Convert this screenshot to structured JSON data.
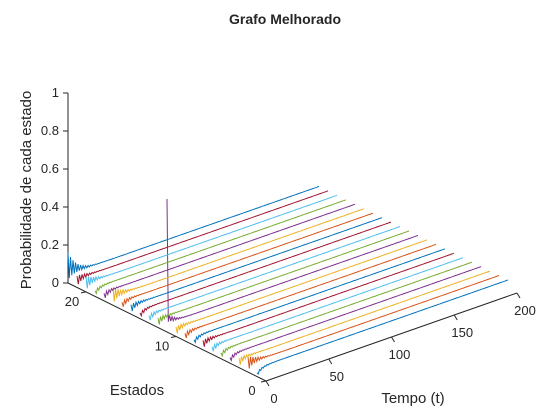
{
  "chart_data": {
    "type": "line",
    "view": "3d-waterfall",
    "title": "Grafo Melhorado",
    "xlabel": "Tempo (t)",
    "ylabel": "Estados",
    "zlabel": "Probabilidade de cada estado",
    "xlim": [
      0,
      200
    ],
    "ylim": [
      0,
      22
    ],
    "zlim": [
      0,
      1
    ],
    "x_ticks": [
      0,
      50,
      100,
      150,
      200
    ],
    "y_ticks": [
      0,
      10,
      20
    ],
    "z_ticks": [
      0,
      0.2,
      0.4,
      0.6,
      0.8,
      1
    ],
    "x_tick_labels": [
      "0",
      "50",
      "100",
      "150",
      "200"
    ],
    "y_tick_labels": [
      "0",
      "10",
      "20"
    ],
    "z_tick_labels": [
      "0",
      "0.2",
      "0.4",
      "0.6",
      "0.8",
      "1"
    ],
    "t_max": 200,
    "states": [
      1,
      2,
      3,
      4,
      5,
      6,
      7,
      8,
      9,
      10,
      11,
      12,
      13,
      14,
      15,
      16,
      17,
      18,
      19,
      20,
      21,
      22
    ],
    "initial_state": 11,
    "initial_peak": 0.7,
    "transient_peaks": [
      0.02,
      0.08,
      0.05,
      0.03,
      0.03,
      0.04,
      0.05,
      0.03,
      0.04,
      0.05,
      0.7,
      0.05,
      0.04,
      0.03,
      0.05,
      0.04,
      0.09,
      0.04,
      0.03,
      0.08,
      0.06,
      0.16
    ],
    "steady_value": 0.045,
    "series_colors": [
      "#0072BD",
      "#D95319",
      "#EDB120",
      "#7E2F8E",
      "#77AC30",
      "#4DBEEE",
      "#A2142F"
    ]
  }
}
